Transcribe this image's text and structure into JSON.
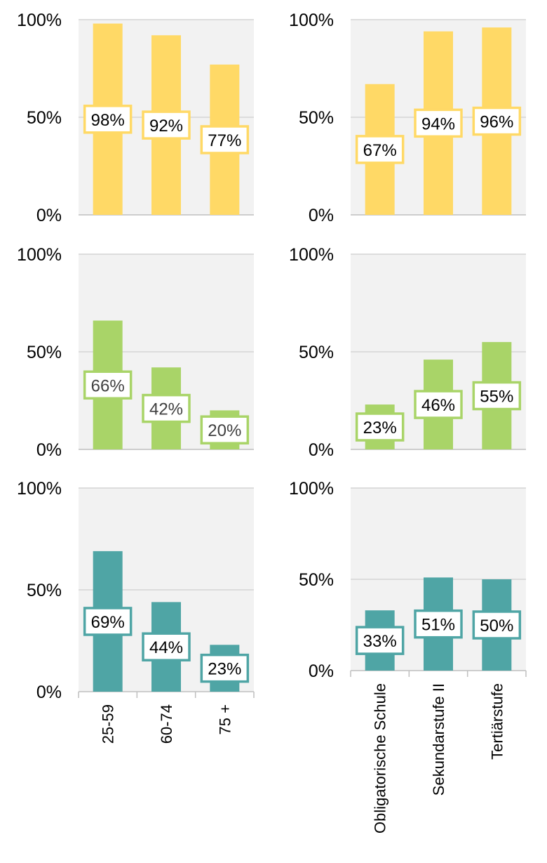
{
  "chart_data": [
    {
      "type": "bar",
      "categories": [
        "25-59",
        "60-74",
        "75 +"
      ],
      "values": [
        98,
        92,
        77
      ],
      "data_labels": [
        "98%",
        "92%",
        "77%"
      ],
      "y_ticks": [
        "0%",
        "50%",
        "100%"
      ],
      "ylim": [
        0,
        100
      ],
      "color": "#FFD966",
      "label_text_color": "#000000",
      "grid": true
    },
    {
      "type": "bar",
      "categories": [
        "Obligatorische Schule",
        "Sekundarstufe II",
        "Tertiärstufe"
      ],
      "values": [
        67,
        94,
        96
      ],
      "data_labels": [
        "67%",
        "94%",
        "96%"
      ],
      "y_ticks": [
        "0%",
        "50%",
        "100%"
      ],
      "ylim": [
        0,
        100
      ],
      "color": "#FFD966",
      "label_text_color": "#000000",
      "grid": true
    },
    {
      "type": "bar",
      "categories": [
        "25-59",
        "60-74",
        "75 +"
      ],
      "values": [
        66,
        42,
        20
      ],
      "data_labels": [
        "66%",
        "42%",
        "20%"
      ],
      "y_ticks": [
        "0%",
        "50%",
        "100%"
      ],
      "ylim": [
        0,
        100
      ],
      "color": "#A9D468",
      "label_text_color": "#404040",
      "grid": true
    },
    {
      "type": "bar",
      "categories": [
        "Obligatorische Schule",
        "Sekundarstufe II",
        "Tertiärstufe"
      ],
      "values": [
        23,
        46,
        55
      ],
      "data_labels": [
        "23%",
        "46%",
        "55%"
      ],
      "y_ticks": [
        "0%",
        "50%",
        "100%"
      ],
      "ylim": [
        0,
        100
      ],
      "color": "#A9D468",
      "label_text_color": "#000000",
      "grid": true
    },
    {
      "type": "bar",
      "categories": [
        "25-59",
        "60-74",
        "75 +"
      ],
      "values": [
        69,
        44,
        23
      ],
      "data_labels": [
        "69%",
        "44%",
        "23%"
      ],
      "y_ticks": [
        "0%",
        "50%",
        "100%"
      ],
      "ylim": [
        0,
        100
      ],
      "color": "#4FA5A5",
      "label_text_color": "#000000",
      "grid": true,
      "show_category_labels": true
    },
    {
      "type": "bar",
      "categories": [
        "Obligatorische Schule",
        "Sekundarstufe II",
        "Tertiärstufe"
      ],
      "values": [
        33,
        51,
        50
      ],
      "data_labels": [
        "33%",
        "51%",
        "50%"
      ],
      "y_ticks": [
        "0%",
        "50%",
        "100%"
      ],
      "ylim": [
        0,
        100
      ],
      "color": "#4FA5A5",
      "label_text_color": "#000000",
      "grid": true,
      "show_category_labels": true
    }
  ]
}
